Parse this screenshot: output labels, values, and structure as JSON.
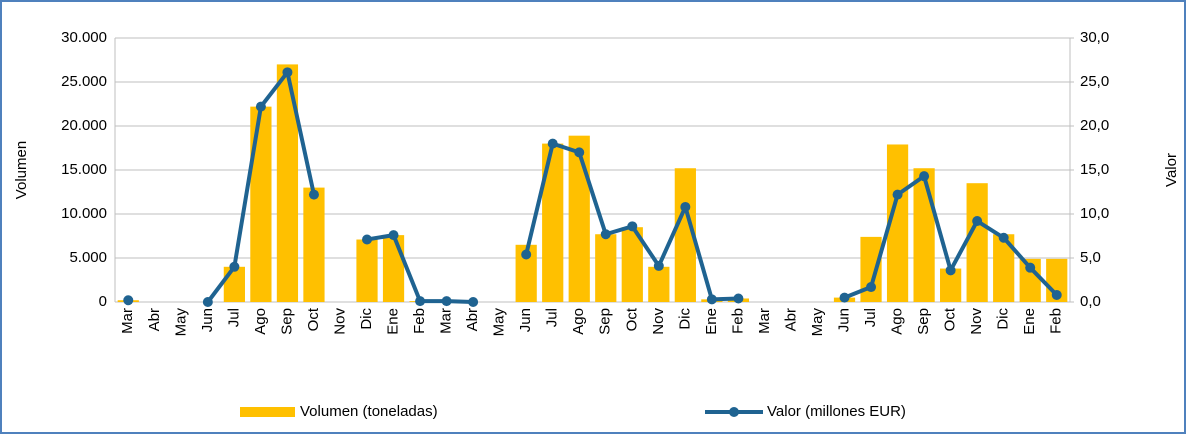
{
  "chart_data": {
    "type": "bar",
    "categories": [
      "Mar",
      "Abr",
      "May",
      "Jun",
      "Jul",
      "Ago",
      "Sep",
      "Oct",
      "Nov",
      "Dic",
      "Ene",
      "Feb",
      "Mar",
      "Abr",
      "May",
      "Jun",
      "Jul",
      "Ago",
      "Sep",
      "Oct",
      "Nov",
      "Dic",
      "Ene",
      "Feb",
      "Mar",
      "Abr",
      "May",
      "Jun",
      "Jul",
      "Ago",
      "Sep",
      "Oct",
      "Nov",
      "Dic",
      "Ene",
      "Feb"
    ],
    "series": [
      {
        "name": "Volumen (toneladas)",
        "type": "bar",
        "color": "#ffc000",
        "values": [
          200,
          0,
          0,
          0,
          4000,
          22200,
          27000,
          13000,
          0,
          7100,
          7600,
          100,
          100,
          0,
          0,
          6500,
          18000,
          18900,
          7700,
          8500,
          4000,
          15200,
          300,
          400,
          0,
          0,
          0,
          500,
          7400,
          17900,
          15200,
          3800,
          13500,
          7700,
          4900,
          4900
        ]
      },
      {
        "name": "Valor (millones EUR)",
        "type": "line",
        "axis": "y2",
        "color": "#1f6391",
        "values": [
          0.2,
          null,
          null,
          0.0,
          4.0,
          22.2,
          26.1,
          12.2,
          null,
          7.1,
          7.6,
          0.1,
          0.1,
          0.0,
          null,
          5.4,
          18.0,
          17.0,
          7.7,
          8.6,
          4.1,
          10.8,
          0.3,
          0.4,
          null,
          null,
          null,
          0.5,
          1.7,
          12.2,
          14.3,
          3.6,
          9.2,
          7.3,
          3.9,
          0.8
        ]
      }
    ],
    "ylabel": "Volumen",
    "y2label": "Valor",
    "ylim": [
      0,
      30000
    ],
    "yticks": [
      0,
      {
        "value": 5000,
        "label": "5.000"
      },
      {
        "value": 10000,
        "label": "10.000"
      },
      {
        "value": 15000,
        "label": "15.000"
      },
      {
        "value": 20000,
        "label": "20.000"
      },
      {
        "value": 25000,
        "label": "25.000"
      },
      {
        "value": 30000,
        "label": "30.000"
      }
    ],
    "y2lim": [
      0,
      30
    ],
    "y2ticks": [
      {
        "value": 0,
        "label": "0,0"
      },
      {
        "value": 5,
        "label": "5,0"
      },
      {
        "value": 10,
        "label": "10,0"
      },
      {
        "value": 15,
        "label": "15,0"
      },
      {
        "value": 20,
        "label": "20,0"
      },
      {
        "value": 25,
        "label": "25,0"
      },
      {
        "value": 30,
        "label": "30,0"
      }
    ],
    "grid": true,
    "legend": "bottom"
  }
}
